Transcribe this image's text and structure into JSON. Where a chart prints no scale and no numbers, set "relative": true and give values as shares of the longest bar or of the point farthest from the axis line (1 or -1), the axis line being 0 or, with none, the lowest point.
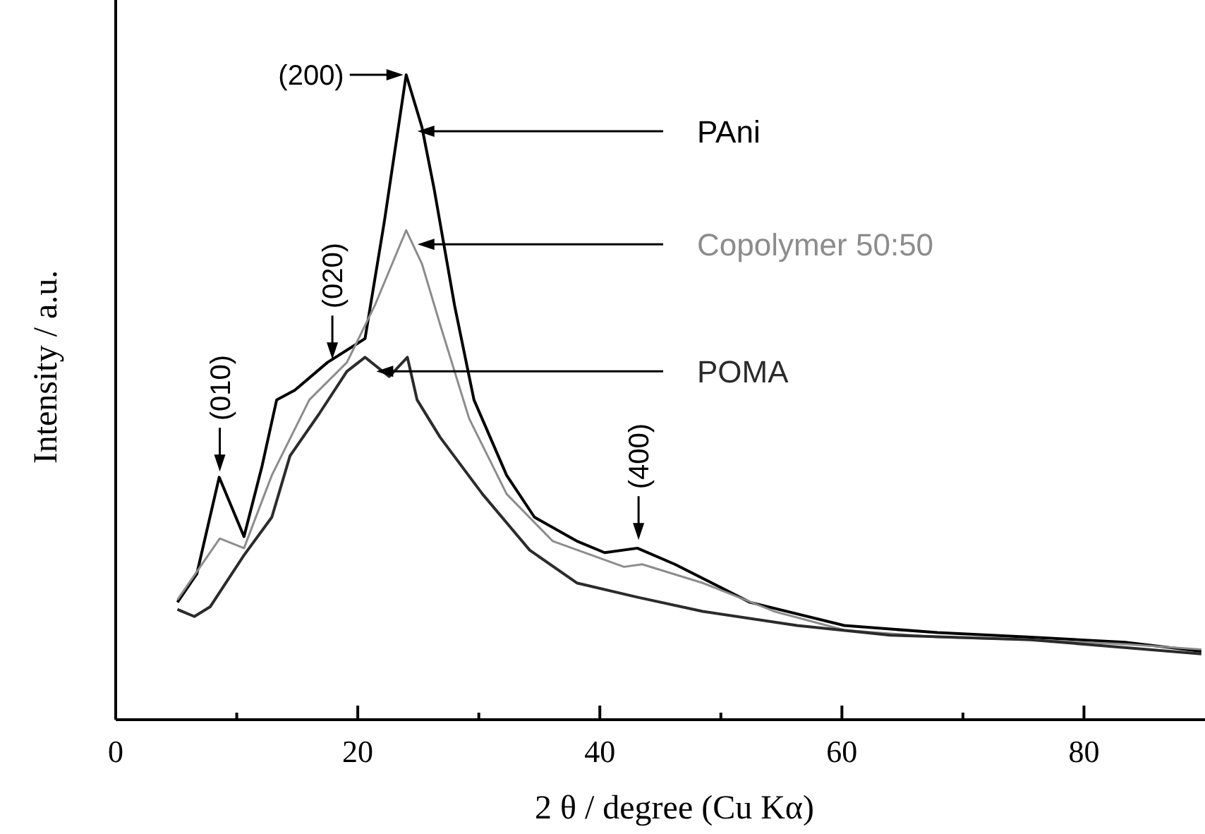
{
  "chart_data": {
    "type": "line",
    "relative": true,
    "xlabel": "2 θ / degree (Cu Kα)",
    "ylabel": "Intensity / a.u.",
    "xlim": [
      0,
      90
    ],
    "xticks": [
      0,
      {
        "value": 10,
        "label": null
      },
      20,
      {
        "value": 30,
        "label": null
      },
      40,
      {
        "value": 50,
        "label": null
      },
      60,
      {
        "value": 70,
        "label": null
      },
      80
    ],
    "grid": false,
    "marker": "none",
    "line_style": "solid",
    "series": [
      {
        "name": "PAni",
        "color": "#000000",
        "x": [
          5.1,
          6.7,
          8.55,
          10.6,
          12.1,
          13.3,
          14.8,
          17.5,
          20.6,
          22.2,
          24.0,
          25.3,
          26.3,
          28.0,
          29.6,
          32.3,
          34.6,
          38.1,
          40.4,
          43.1,
          46.2,
          52.4,
          60.2,
          67.9,
          75.6,
          83.4,
          89.7
        ],
        "values": [
          0.182,
          0.226,
          0.376,
          0.284,
          0.394,
          0.496,
          0.511,
          0.554,
          0.591,
          0.773,
          1.0,
          0.919,
          0.824,
          0.642,
          0.496,
          0.379,
          0.314,
          0.277,
          0.259,
          0.266,
          0.241,
          0.182,
          0.146,
          0.135,
          0.128,
          0.12,
          0.106
        ]
      },
      {
        "name": "Copolymer 50:50",
        "color": "#8c8c8c",
        "x": [
          5.1,
          8.6,
          10.6,
          12.9,
          16.0,
          19.1,
          21.4,
          24.0,
          25.3,
          26.8,
          29.2,
          32.3,
          36.1,
          42.0,
          43.5,
          48.5,
          54.4,
          60.2,
          67.9,
          75.6,
          83.4,
          89.7
        ],
        "values": [
          0.186,
          0.281,
          0.266,
          0.379,
          0.496,
          0.554,
          0.642,
          0.759,
          0.707,
          0.613,
          0.467,
          0.35,
          0.277,
          0.237,
          0.241,
          0.212,
          0.168,
          0.139,
          0.128,
          0.124,
          0.117,
          0.109
        ]
      },
      {
        "name": "POMA",
        "color": "#2b2b2b",
        "x": [
          5.1,
          6.5,
          7.8,
          10.6,
          12.9,
          14.4,
          16.8,
          19.1,
          20.6,
          22.6,
          24.1,
          24.9,
          26.8,
          30.3,
          34.2,
          38.1,
          43.1,
          48.5,
          56.3,
          64.0,
          75.6,
          89.7
        ],
        "values": [
          0.171,
          0.16,
          0.175,
          0.255,
          0.314,
          0.409,
          0.474,
          0.54,
          0.562,
          0.532,
          0.562,
          0.496,
          0.438,
          0.35,
          0.263,
          0.212,
          0.19,
          0.168,
          0.146,
          0.131,
          0.124,
          0.102
        ]
      }
    ],
    "annotations": [
      {
        "text": "(200)",
        "x": 24.0,
        "y": 1.0
      },
      {
        "text": "(010)",
        "x": 8.6,
        "y": 0.376
      },
      {
        "text": "(020)",
        "x": 17.9,
        "y": 0.55
      },
      {
        "text": "(400)",
        "x": 43.2,
        "y": 0.27
      }
    ]
  }
}
